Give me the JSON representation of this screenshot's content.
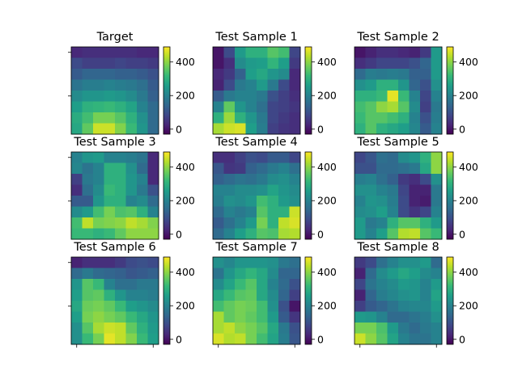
{
  "chart_data": {
    "type": "heatmap",
    "grid": false,
    "colormap": "viridis",
    "color_range": [
      -30,
      490
    ],
    "colorbar_ticks": [
      0,
      200,
      400
    ],
    "colors": {
      "viridis": [
        "#440154",
        "#482878",
        "#3e4989",
        "#31688e",
        "#26828e",
        "#1f9e89",
        "#35b779",
        "#6ece58",
        "#b5de2b",
        "#fde725"
      ]
    },
    "panels": [
      {
        "title": "Target",
        "values": [
          [
            30,
            40,
            40,
            40,
            40,
            40,
            30,
            30
          ],
          [
            90,
            70,
            70,
            70,
            80,
            70,
            70,
            60
          ],
          [
            120,
            140,
            140,
            140,
            130,
            130,
            120,
            100
          ],
          [
            170,
            190,
            190,
            200,
            190,
            180,
            160,
            120
          ],
          [
            220,
            240,
            240,
            250,
            240,
            220,
            180,
            130
          ],
          [
            260,
            300,
            310,
            320,
            300,
            270,
            200,
            150
          ],
          [
            290,
            330,
            380,
            380,
            350,
            300,
            230,
            150
          ],
          [
            280,
            360,
            450,
            450,
            390,
            320,
            240,
            150
          ]
        ]
      },
      {
        "title": "Test Sample 1",
        "values": [
          [
            0,
            90,
            250,
            300,
            300,
            350,
            330,
            80
          ],
          [
            0,
            40,
            220,
            250,
            260,
            310,
            260,
            60
          ],
          [
            30,
            60,
            130,
            260,
            280,
            240,
            220,
            30
          ],
          [
            20,
            90,
            180,
            200,
            250,
            180,
            90,
            30
          ],
          [
            120,
            180,
            200,
            200,
            180,
            100,
            70,
            40
          ],
          [
            200,
            360,
            240,
            200,
            160,
            80,
            70,
            50
          ],
          [
            300,
            410,
            300,
            240,
            180,
            80,
            60,
            40
          ],
          [
            420,
            450,
            460,
            260,
            190,
            70,
            50,
            40
          ]
        ]
      },
      {
        "title": "Test Sample 2",
        "values": [
          [
            0,
            20,
            40,
            40,
            30,
            20,
            60,
            250
          ],
          [
            40,
            60,
            80,
            80,
            80,
            100,
            140,
            250
          ],
          [
            150,
            190,
            180,
            190,
            180,
            130,
            130,
            250
          ],
          [
            230,
            250,
            300,
            300,
            240,
            140,
            100,
            230
          ],
          [
            300,
            300,
            320,
            470,
            320,
            200,
            80,
            200
          ],
          [
            330,
            350,
            400,
            420,
            350,
            220,
            70,
            180
          ],
          [
            320,
            350,
            350,
            330,
            300,
            200,
            100,
            190
          ],
          [
            300,
            350,
            300,
            280,
            260,
            210,
            120,
            200
          ]
        ]
      },
      {
        "title": "Test Sample 3",
        "values": [
          [
            200,
            240,
            250,
            200,
            200,
            190,
            170,
            30
          ],
          [
            210,
            170,
            200,
            300,
            300,
            230,
            150,
            30
          ],
          [
            70,
            180,
            200,
            300,
            300,
            240,
            200,
            30
          ],
          [
            40,
            160,
            220,
            320,
            300,
            240,
            180,
            100
          ],
          [
            120,
            120,
            240,
            300,
            300,
            200,
            220,
            150
          ],
          [
            220,
            250,
            330,
            380,
            340,
            350,
            300,
            200
          ],
          [
            330,
            440,
            380,
            390,
            400,
            440,
            420,
            390
          ],
          [
            320,
            320,
            300,
            320,
            360,
            400,
            400,
            400
          ]
        ]
      },
      {
        "title": "Test Sample 4",
        "values": [
          [
            40,
            40,
            70,
            100,
            90,
            120,
            120,
            80
          ],
          [
            110,
            50,
            60,
            130,
            150,
            180,
            200,
            160
          ],
          [
            130,
            150,
            170,
            160,
            180,
            220,
            230,
            200
          ],
          [
            200,
            200,
            220,
            220,
            230,
            270,
            240,
            220
          ],
          [
            190,
            230,
            220,
            240,
            330,
            300,
            250,
            230
          ],
          [
            150,
            200,
            180,
            200,
            350,
            300,
            300,
            450
          ],
          [
            120,
            160,
            200,
            250,
            380,
            300,
            440,
            460
          ],
          [
            150,
            200,
            260,
            300,
            350,
            340,
            420,
            430
          ]
        ]
      },
      {
        "title": "Test Sample 5",
        "values": [
          [
            80,
            110,
            160,
            150,
            220,
            240,
            300,
            400
          ],
          [
            100,
            100,
            150,
            150,
            160,
            180,
            280,
            400
          ],
          [
            190,
            200,
            160,
            130,
            60,
            40,
            90,
            230
          ],
          [
            230,
            230,
            200,
            180,
            80,
            20,
            20,
            180
          ],
          [
            200,
            240,
            230,
            190,
            90,
            20,
            10,
            180
          ],
          [
            220,
            230,
            260,
            200,
            90,
            50,
            80,
            200
          ],
          [
            250,
            180,
            200,
            300,
            350,
            350,
            300,
            250
          ],
          [
            250,
            200,
            260,
            350,
            430,
            440,
            350,
            320
          ]
        ]
      },
      {
        "title": "Test Sample 6",
        "values": [
          [
            20,
            40,
            40,
            40,
            60,
            90,
            100,
            90
          ],
          [
            150,
            180,
            150,
            140,
            130,
            110,
            120,
            130
          ],
          [
            240,
            350,
            320,
            200,
            160,
            160,
            180,
            180
          ],
          [
            260,
            350,
            360,
            300,
            240,
            200,
            200,
            190
          ],
          [
            280,
            370,
            380,
            360,
            320,
            260,
            240,
            220
          ],
          [
            260,
            380,
            400,
            380,
            360,
            320,
            280,
            240
          ],
          [
            230,
            350,
            420,
            450,
            440,
            360,
            300,
            250
          ],
          [
            230,
            320,
            380,
            470,
            440,
            390,
            320,
            260
          ]
        ]
      },
      {
        "title": "Test Sample 7",
        "values": [
          [
            230,
            210,
            240,
            240,
            240,
            230,
            180,
            160
          ],
          [
            170,
            240,
            280,
            310,
            280,
            220,
            140,
            140
          ],
          [
            220,
            270,
            320,
            350,
            280,
            200,
            150,
            100
          ],
          [
            280,
            320,
            350,
            360,
            280,
            220,
            140,
            70
          ],
          [
            330,
            360,
            380,
            370,
            330,
            230,
            100,
            0
          ],
          [
            420,
            360,
            380,
            360,
            330,
            250,
            120,
            50
          ],
          [
            420,
            440,
            400,
            380,
            350,
            280,
            180,
            100
          ],
          [
            460,
            430,
            440,
            380,
            330,
            270,
            190,
            110
          ]
        ]
      },
      {
        "title": "Test Sample 8",
        "values": [
          [
            60,
            90,
            160,
            200,
            230,
            230,
            250,
            150
          ],
          [
            20,
            150,
            220,
            250,
            280,
            260,
            220,
            200
          ],
          [
            80,
            170,
            200,
            220,
            250,
            240,
            200,
            250
          ],
          [
            20,
            140,
            190,
            210,
            230,
            240,
            200,
            270
          ],
          [
            70,
            120,
            140,
            170,
            200,
            210,
            210,
            250
          ],
          [
            250,
            240,
            200,
            150,
            150,
            170,
            190,
            230
          ],
          [
            380,
            380,
            340,
            250,
            180,
            150,
            180,
            200
          ],
          [
            450,
            400,
            350,
            270,
            200,
            170,
            170,
            200
          ]
        ]
      }
    ]
  }
}
